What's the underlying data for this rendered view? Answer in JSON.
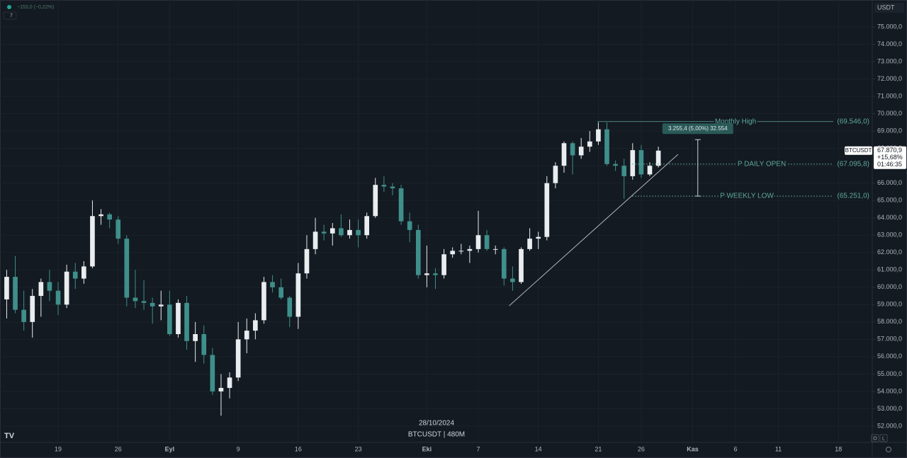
{
  "chart_data": {
    "type": "candlestick",
    "header": {
      "change": "−153,0 (−0,22%)",
      "indicator_count": "7"
    },
    "currency": "USDT",
    "watermark": {
      "date": "28/10/2024",
      "symbol": "BTCUSDT | 480M"
    },
    "up_color": "#e9edf0",
    "down_color": "#3f8f8b",
    "open": [
      59300,
      60600,
      58700,
      58000,
      59500,
      60300,
      59800,
      59000,
      60900,
      60500,
      61200,
      64100,
      64200,
      63900,
      62800,
      59400,
      59200,
      59100,
      58900,
      59000,
      57300,
      59100,
      56900,
      57300,
      56100,
      54000,
      54200,
      54800,
      57000,
      57500,
      58100,
      60300,
      60000,
      59400,
      58300,
      60800,
      62200,
      63200,
      63100,
      63400,
      63000,
      63300,
      63000,
      64100,
      65900,
      65800,
      65700,
      63800,
      63300,
      60700,
      60800,
      60700,
      61900,
      62100,
      62100,
      62200,
      63000,
      62200,
      62200,
      60500,
      60300,
      62200,
      62800,
      62900,
      66000,
      67000,
      68300,
      67600,
      68100,
      68400,
      69100,
      67100,
      67000,
      66400,
      67900,
      66500,
      67000
    ],
    "high": [
      61000,
      61800,
      59800,
      59900,
      60500,
      61000,
      60300,
      61300,
      61400,
      61500,
      65000,
      64500,
      64300,
      64100,
      63000,
      61000,
      60400,
      59400,
      59800,
      59800,
      59300,
      59500,
      58000,
      57800,
      56500,
      55000,
      55100,
      58000,
      58200,
      58500,
      60600,
      60700,
      60500,
      59500,
      61400,
      63000,
      64000,
      63600,
      63700,
      64200,
      63900,
      63900,
      64300,
      66300,
      66400,
      66000,
      65900,
      64300,
      63600,
      62400,
      61100,
      62200,
      62300,
      62500,
      62400,
      64400,
      63300,
      62400,
      62300,
      61200,
      62300,
      63400,
      63200,
      66400,
      67200,
      68400,
      68400,
      68600,
      69000,
      69500,
      69500,
      67300,
      67400,
      68300,
      68200,
      67200,
      68100
    ],
    "low": [
      58200,
      58500,
      57500,
      57100,
      58300,
      59200,
      58400,
      58800,
      59900,
      60200,
      61100,
      63600,
      63400,
      62500,
      58900,
      58800,
      58700,
      57900,
      58100,
      57200,
      57100,
      56400,
      55700,
      55600,
      53800,
      52600,
      53600,
      54600,
      56200,
      57000,
      57900,
      59700,
      59300,
      57700,
      57600,
      60500,
      61900,
      62700,
      62400,
      62900,
      62800,
      62300,
      62800,
      64000,
      65500,
      65300,
      63600,
      62600,
      60500,
      60000,
      59900,
      60500,
      61700,
      61900,
      61400,
      62000,
      62100,
      61900,
      60100,
      59800,
      60200,
      62100,
      62200,
      62700,
      65700,
      66600,
      66500,
      67400,
      67800,
      68200,
      67000,
      66700,
      65100,
      66200,
      66300,
      66400,
      66900
    ],
    "close": [
      60600,
      58700,
      58000,
      59500,
      60300,
      59800,
      59000,
      60900,
      60500,
      61200,
      64100,
      64200,
      63900,
      62800,
      59400,
      59200,
      59100,
      58900,
      59000,
      57300,
      59100,
      56900,
      57300,
      56100,
      54000,
      54200,
      54800,
      57000,
      57500,
      58100,
      60300,
      60000,
      59400,
      58300,
      60800,
      62200,
      63200,
      63100,
      63400,
      63000,
      63300,
      63000,
      64100,
      65900,
      65800,
      65700,
      63800,
      63300,
      60700,
      60800,
      60700,
      61900,
      62100,
      62100,
      62200,
      63000,
      62200,
      62200,
      60500,
      60300,
      62200,
      62800,
      62900,
      66000,
      67000,
      68300,
      67600,
      68100,
      68400,
      69100,
      67100,
      67000,
      66400,
      67900,
      66500,
      67000,
      67870
    ],
    "xlim": [
      -0.78,
      100.7
    ],
    "xticks": [
      {
        "value": 6,
        "label": "19"
      },
      {
        "value": 13,
        "label": "26"
      },
      {
        "value": 19,
        "label": "Eyl"
      },
      {
        "value": 27,
        "label": "9"
      },
      {
        "value": 34,
        "label": "16"
      },
      {
        "value": 41,
        "label": "23"
      },
      {
        "value": 49,
        "label": "Eki"
      },
      {
        "value": 55,
        "label": "7"
      },
      {
        "value": 62,
        "label": "14"
      },
      {
        "value": 69,
        "label": "21"
      },
      {
        "value": 74,
        "label": "26"
      },
      {
        "value": 80,
        "label": "Kas"
      },
      {
        "value": 85,
        "label": "6"
      },
      {
        "value": 90,
        "label": "11"
      },
      {
        "value": 97,
        "label": "18"
      }
    ],
    "ylim": [
      51060,
      76550
    ],
    "yticks": [
      {
        "value": 52000,
        "label": "52.000,0"
      },
      {
        "value": 53000,
        "label": "53.000,0"
      },
      {
        "value": 54000,
        "label": "54.000,0"
      },
      {
        "value": 55000,
        "label": "55.000,0"
      },
      {
        "value": 56000,
        "label": "56.000,0"
      },
      {
        "value": 57000,
        "label": "57.000,0"
      },
      {
        "value": 58000,
        "label": "58.000,0"
      },
      {
        "value": 59000,
        "label": "59.000,0"
      },
      {
        "value": 60000,
        "label": "60.000,0"
      },
      {
        "value": 61000,
        "label": "61.000,0"
      },
      {
        "value": 62000,
        "label": "62.000,0"
      },
      {
        "value": 63000,
        "label": "63.000,0"
      },
      {
        "value": 64000,
        "label": "64.000,0"
      },
      {
        "value": 65000,
        "label": "65.000,0"
      },
      {
        "value": 66000,
        "label": "66.000,0"
      },
      {
        "value": 67000,
        "label": "67.000,0"
      },
      {
        "value": 68000,
        "label": "68.000,0"
      },
      {
        "value": 69000,
        "label": "69.000,0"
      },
      {
        "value": 70000,
        "label": "70.000,0"
      },
      {
        "value": 71000,
        "label": "71.000,0"
      },
      {
        "value": 72000,
        "label": "72.000,0"
      },
      {
        "value": 73000,
        "label": "73.000,0"
      },
      {
        "value": 74000,
        "label": "74.000,0"
      },
      {
        "value": 75000,
        "label": "75.000,0"
      }
    ],
    "grid": true,
    "levels": [
      {
        "name": "Monthly High",
        "price": {
          "value": 69546,
          "label": "(69.546,0)"
        }
      },
      {
        "name": "P DAILY OPEN",
        "price": {
          "value": 67095.8,
          "label": "(67.095,8)"
        }
      },
      {
        "name": "P WEEKLY LOW",
        "price": {
          "value": 65251,
          "label": "(65.251,0)"
        }
      }
    ],
    "trendline": {
      "x": [
        58.6,
        78.3
      ],
      "y": [
        58930,
        67660
      ]
    },
    "measure": {
      "text": "3.255,4 (5,00%) 32.554",
      "x": 80.6,
      "low": 65251,
      "high": 68506.4
    },
    "last_price": {
      "symbol": "BTCUSDT",
      "price": {
        "value": 67870.9,
        "label": "67.870,9"
      },
      "change": "+15,68%",
      "countdown": "01:46:35"
    },
    "footer_buttons": [
      "O",
      "L"
    ]
  }
}
